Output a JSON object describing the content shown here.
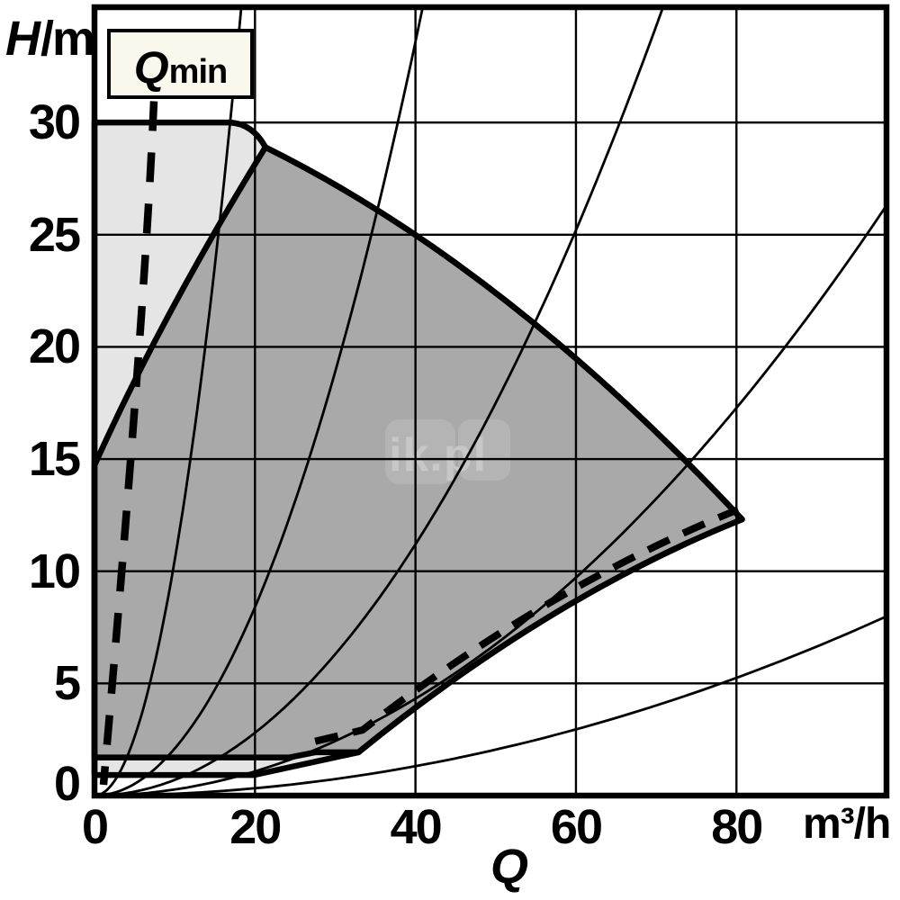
{
  "labels": {
    "y_symbol": "H",
    "y_unit": "/m",
    "x_symbol": "Q",
    "x_unit": "m³/h",
    "qmin_symbol": "Q",
    "qmin_sub": "min"
  },
  "watermark": {
    "text": "ik.pl"
  },
  "colors": {
    "background": "#ffffff",
    "line": "#000000",
    "envelope_light": "#e5e5e5",
    "operating_dark": "#a9a9a9",
    "qmin_box_bg": "#faf7ec",
    "watermark_tile": "#b4b4b4",
    "watermark_text": "#c7c7c7"
  },
  "chart_data": {
    "type": "area",
    "description": "Pump duty field: head H (m) versus flow Q (m³/h). Light gray outer envelope, dark gray permitted operating range, dashed Qmin minimum-flow limit, dashed minimum-speed limit along lower right edge, thin system-characteristic parabolas H=k·Q².",
    "axes": {
      "x": {
        "label": "Q",
        "unit": "m³/h",
        "ticks": [
          0,
          20,
          40,
          60,
          80
        ],
        "gridlines": [
          20,
          40,
          60,
          80
        ],
        "range": [
          0,
          98.7
        ]
      },
      "y": {
        "label": "H",
        "unit": "m",
        "ticks": [
          30,
          25,
          20,
          15,
          10,
          5,
          0
        ],
        "gridlines": [
          5,
          10,
          15,
          20,
          25,
          30
        ],
        "range": [
          0,
          35.14
        ]
      }
    },
    "regions": [
      {
        "name": "outer-envelope",
        "fill": "light",
        "path": [
          [
            "M",
            0,
            30
          ],
          [
            "L",
            16.8,
            30
          ],
          [
            "Q",
            19.7,
            29.96,
            21.3,
            28.9
          ],
          [
            "Q",
            51.2,
            23.6,
            80.7,
            12.31
          ],
          [
            "Q",
            56.7,
            8.86,
            32.9,
            1.93
          ],
          [
            "L",
            19.9,
            0.92
          ],
          [
            "L",
            0,
            0.92
          ],
          [
            "Z"
          ]
        ]
      },
      {
        "name": "operating-range",
        "fill": "dark",
        "path": [
          [
            "M",
            21.3,
            28.9
          ],
          [
            "Q",
            8.4,
            21.4,
            0,
            14.72
          ],
          [
            "L",
            0,
            1.7
          ],
          [
            "L",
            24.3,
            1.7
          ],
          [
            "L",
            27.5,
            1.93
          ],
          [
            "L",
            32.9,
            1.93
          ],
          [
            "Q",
            56.7,
            8.86,
            80.7,
            12.31
          ],
          [
            "Q",
            51.2,
            23.6,
            21.3,
            28.9
          ],
          [
            "Z"
          ]
        ]
      }
    ],
    "qmin_line": {
      "label": "Qmin",
      "style": "dashed",
      "path": [
        [
          "M",
          7.4,
          30.95
        ],
        [
          "Q",
          6.28,
          21.46,
          1.12,
          0.48
        ]
      ]
    },
    "min_speed_limit": {
      "style": "dashed",
      "path": [
        [
          "M",
          27.5,
          2.42
        ],
        [
          "L",
          33.4,
          2.92
        ],
        [
          "Q",
          56.4,
          9.3,
          80.2,
          12.75
        ]
      ]
    },
    "system_curves": {
      "formula": "H = k * Q^2",
      "k_values": [
        0.105,
        0.021,
        0.007,
        0.0027,
        0.00082
      ]
    }
  }
}
